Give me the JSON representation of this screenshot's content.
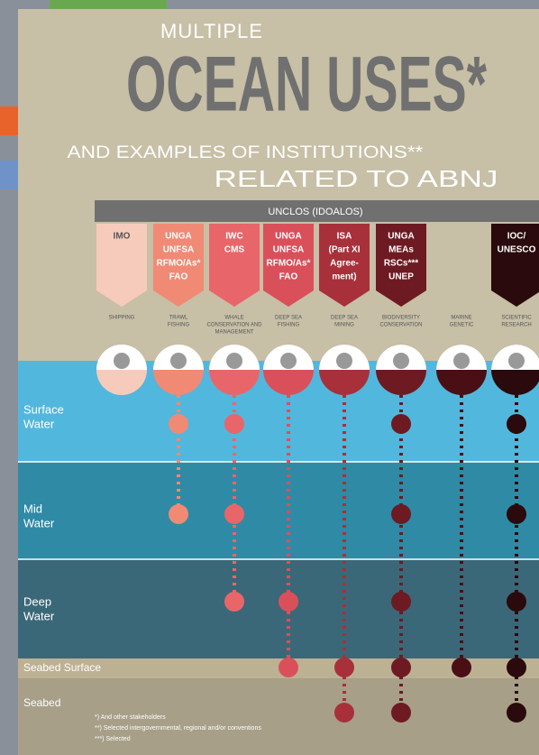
{
  "title": {
    "line1": "MULTIPLE",
    "line2": "OCEAN USES*",
    "line3": "AND EXAMPLES OF INSTITUTIONS**",
    "line4": "RELATED TO ABNJ"
  },
  "framework": "UNCLOS (IDOALOS)",
  "columns": [
    {
      "institution": [
        "IMO"
      ],
      "use": [
        "SHIPPING"
      ]
    },
    {
      "institution": [
        "UNGA",
        "UNFSA",
        "RFMO/As*",
        "FAO"
      ],
      "use": [
        "TRAWL",
        "FISHING"
      ]
    },
    {
      "institution": [
        "IWC",
        "CMS"
      ],
      "use": [
        "WHALE",
        "CONSERVATION AND",
        "MANAGEMENT"
      ]
    },
    {
      "institution": [
        "UNGA",
        "UNFSA",
        "RFMO/As*",
        "FAO"
      ],
      "use": [
        "DEEP SEA",
        "FISHING"
      ]
    },
    {
      "institution": [
        "ISA",
        "(Part XI",
        "Agree-",
        "ment)"
      ],
      "use": [
        "DEEP SEA",
        "MINING"
      ]
    },
    {
      "institution": [
        "UNGA",
        "MEAs",
        "RSCs***",
        "UNEP"
      ],
      "use": [
        "BIODIVERSITY",
        "CONSERVATION"
      ]
    },
    {
      "institution": [],
      "use": [
        "MARINE",
        "GENETIC"
      ]
    },
    {
      "institution": [
        "IOC/",
        "UNESCO"
      ],
      "use": [
        "SCIENTIFIC",
        "RESEARCH"
      ]
    }
  ],
  "layers": [
    "Surface Water",
    "Mid Water",
    "Deep Water",
    "Seabed Surface",
    "Seabed"
  ],
  "footnotes": [
    "*) And other stakeholders",
    "**) Selected intergovernmental, regional and/or conventions",
    "***) Selected"
  ]
}
